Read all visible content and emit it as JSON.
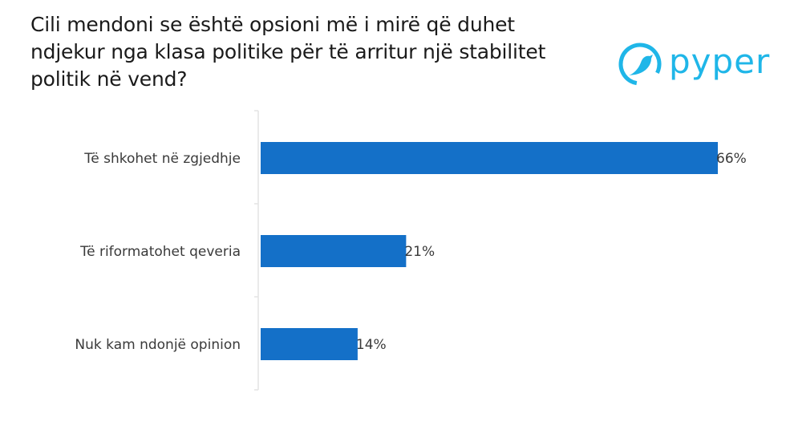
{
  "title": "Cili mendoni se është opsioni më i mirë që duhet ndjekur nga klasa politike për të arritur një stabilitet politik në vend?",
  "logo": {
    "text": "pyper",
    "icon": "bird-logo-icon",
    "color": "#1fb6e8"
  },
  "chart_data": {
    "type": "bar",
    "orientation": "horizontal",
    "title": "Cili mendoni se është opsioni më i mirë që duhet ndjekur nga klasa politike për të arritur një stabilitet politik në vend?",
    "categories": [
      "Të shkohet në zgjedhje",
      "Të riformatohet qeveria",
      "Nuk kam ndonjë opinion"
    ],
    "values": [
      66,
      21,
      14
    ],
    "value_labels": [
      "66%",
      "21%",
      "14%"
    ],
    "xlim": [
      0,
      66
    ],
    "unit": "%",
    "bar_color": "#1470c8",
    "grid": false,
    "legend": "none"
  }
}
